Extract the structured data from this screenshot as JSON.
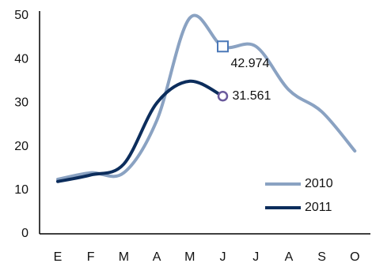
{
  "chart_data": {
    "type": "line",
    "categories": [
      "E",
      "F",
      "M",
      "A",
      "M",
      "J",
      "J",
      "A",
      "S",
      "O"
    ],
    "series": [
      {
        "name": "2010",
        "color": "#8aa2c2",
        "marker": "square",
        "values": [
          12.5,
          14,
          14,
          26,
          49.5,
          42.974,
          43,
          33,
          28,
          19
        ],
        "value_labels": [
          null,
          null,
          null,
          null,
          null,
          "42.974",
          null,
          null,
          null,
          null
        ]
      },
      {
        "name": "2011",
        "color": "#0c2d5c",
        "marker": "circle",
        "values": [
          12,
          13.5,
          16,
          30,
          35,
          31.561,
          null,
          null,
          null,
          null
        ],
        "value_labels": [
          null,
          null,
          null,
          null,
          null,
          "31.561",
          null,
          null,
          null,
          null
        ]
      }
    ],
    "ylim": [
      0,
      50
    ],
    "yticks": [
      0,
      10,
      20,
      30,
      40,
      50
    ],
    "grid": false,
    "legend": "lower right"
  }
}
